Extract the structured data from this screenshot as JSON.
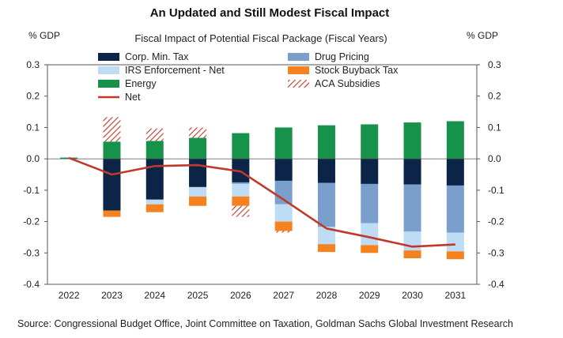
{
  "chart_data": {
    "type": "bar",
    "stacked": true,
    "title": "An Updated and Still Modest Fiscal Impact",
    "subtitle": "Fiscal Impact of Potential Fiscal Package (Fiscal Years)",
    "ylabel_left": "% GDP",
    "ylabel_right": "% GDP",
    "source": "Source: Congressional Budget Office, Joint Committee on Taxation, Goldman Sachs Global Investment Research",
    "ylim": [
      -0.4,
      0.3
    ],
    "yticks": [
      "0.3",
      "0.2",
      "0.1",
      "0.0",
      "-0.1",
      "-0.2",
      "-0.3",
      "-0.4"
    ],
    "ytick_values": [
      0.3,
      0.2,
      0.1,
      0.0,
      -0.1,
      -0.2,
      -0.3,
      -0.4
    ],
    "categories": [
      "2022",
      "2023",
      "2024",
      "2025",
      "2026",
      "2027",
      "2028",
      "2029",
      "2030",
      "2031"
    ],
    "legend_placement": "top, inside plot",
    "series": [
      {
        "name": "Corp. Min. Tax",
        "color": "#0b2447",
        "pattern": "solid",
        "values": [
          0,
          -0.165,
          -0.13,
          -0.09,
          -0.075,
          -0.07,
          -0.077,
          -0.08,
          -0.082,
          -0.085
        ]
      },
      {
        "name": "Drug Pricing",
        "color": "#7b9fcc",
        "pattern": "solid",
        "values": [
          0,
          0,
          0,
          0,
          -0.005,
          -0.075,
          -0.14,
          -0.125,
          -0.15,
          -0.15
        ]
      },
      {
        "name": "IRS Enforcement - Net",
        "color": "#bfdcf5",
        "pattern": "solid",
        "values": [
          0,
          0,
          -0.015,
          -0.03,
          -0.04,
          -0.055,
          -0.055,
          -0.07,
          -0.06,
          -0.06
        ]
      },
      {
        "name": "Stock Buyback Tax",
        "color": "#f5821f",
        "pattern": "solid",
        "values": [
          0,
          -0.02,
          -0.025,
          -0.03,
          -0.03,
          -0.03,
          -0.025,
          -0.025,
          -0.025,
          -0.025
        ]
      },
      {
        "name": "Energy",
        "color": "#17924a",
        "pattern": "solid",
        "values": [
          0.004,
          0.055,
          0.057,
          0.067,
          0.082,
          0.1,
          0.107,
          0.11,
          0.116,
          0.12
        ]
      },
      {
        "name": "ACA Subsidies",
        "color": "#c0392b",
        "pattern": "hatch",
        "values": [
          0,
          0.078,
          0.04,
          0.033,
          -0.035,
          -0.005,
          0,
          0,
          0,
          0
        ]
      }
    ],
    "line": {
      "name": "Net",
      "color": "#c0392b",
      "values": [
        0.003,
        -0.05,
        -0.023,
        -0.02,
        -0.04,
        -0.13,
        -0.222,
        -0.25,
        -0.28,
        -0.273
      ]
    }
  }
}
